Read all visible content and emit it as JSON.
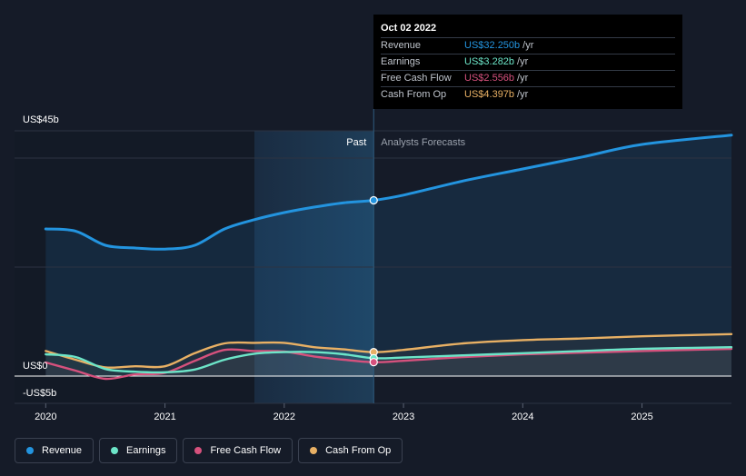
{
  "colors": {
    "background": "#151b28",
    "revenue": "#2394df",
    "earnings": "#6ce5c8",
    "free_cash_flow": "#d6517d",
    "cash_from_op": "#e8b064",
    "past_shade": "#1e3a52"
  },
  "tooltip": {
    "date": "Oct 02 2022",
    "rows": [
      {
        "label": "Revenue",
        "value": "US$32.250b",
        "unit": "/yr",
        "color": "#2394df"
      },
      {
        "label": "Earnings",
        "value": "US$3.282b",
        "unit": "/yr",
        "color": "#6ce5c8"
      },
      {
        "label": "Free Cash Flow",
        "value": "US$2.556b",
        "unit": "/yr",
        "color": "#d6517d"
      },
      {
        "label": "Cash From Op",
        "value": "US$4.397b",
        "unit": "/yr",
        "color": "#e8b064"
      }
    ]
  },
  "legend": {
    "items": [
      {
        "label": "Revenue",
        "color": "#2394df"
      },
      {
        "label": "Earnings",
        "color": "#6ce5c8"
      },
      {
        "label": "Free Cash Flow",
        "color": "#d6517d"
      },
      {
        "label": "Cash From Op",
        "color": "#e8b064"
      }
    ]
  },
  "chart_data": {
    "type": "line",
    "title": "",
    "xlabel": "",
    "ylabel": "",
    "ylim": [
      -5,
      45
    ],
    "xlim": [
      2019.99,
      2025.75
    ],
    "y_labels": {
      "top": "US$45b",
      "zero": "US$0",
      "bottom": "-US$5b"
    },
    "y_label_values": {
      "top": 45,
      "zero": 0,
      "bottom": -5
    },
    "x_ticks": [
      {
        "label": "2020",
        "value": 2020
      },
      {
        "label": "2021",
        "value": 2021
      },
      {
        "label": "2022",
        "value": 2022
      },
      {
        "label": "2023",
        "value": 2023
      },
      {
        "label": "2024",
        "value": 2024
      },
      {
        "label": "2025",
        "value": 2025
      }
    ],
    "gridlines": [
      45,
      40,
      20,
      0,
      -5
    ],
    "past_start": 2021.75,
    "divider": 2022.75,
    "past_label": "Past",
    "forecast_label": "Analysts Forecasts",
    "series": [
      {
        "name": "Revenue",
        "color": "#2394df",
        "x": [
          2020.0,
          2020.25,
          2020.5,
          2020.75,
          2021.0,
          2021.25,
          2021.5,
          2021.75,
          2022.0,
          2022.25,
          2022.5,
          2022.75,
          2023.0,
          2023.5,
          2024.0,
          2024.5,
          2025.0,
          2025.75
        ],
        "values": [
          27.0,
          26.6,
          24.0,
          23.5,
          23.3,
          24.0,
          27.0,
          28.7,
          30.0,
          31.0,
          31.8,
          32.25,
          33.2,
          35.8,
          38.0,
          40.2,
          42.5,
          44.2
        ]
      },
      {
        "name": "Earnings",
        "color": "#6ce5c8",
        "x": [
          2020.0,
          2020.25,
          2020.5,
          2020.75,
          2021.0,
          2021.25,
          2021.5,
          2021.75,
          2022.0,
          2022.25,
          2022.5,
          2022.75,
          2023.0,
          2023.5,
          2024.0,
          2024.5,
          2025.0,
          2025.75
        ],
        "values": [
          4.0,
          3.5,
          1.3,
          0.8,
          0.7,
          1.2,
          3.0,
          4.1,
          4.4,
          4.4,
          4.0,
          3.28,
          3.4,
          3.8,
          4.2,
          4.6,
          5.0,
          5.3
        ]
      },
      {
        "name": "Free Cash Flow",
        "color": "#d6517d",
        "x": [
          2020.0,
          2020.25,
          2020.5,
          2020.75,
          2021.0,
          2021.25,
          2021.5,
          2021.75,
          2022.0,
          2022.25,
          2022.5,
          2022.75,
          2023.0,
          2023.5,
          2024.0,
          2024.5,
          2025.0,
          2025.75
        ],
        "values": [
          2.5,
          1.0,
          -0.5,
          0.3,
          0.6,
          2.8,
          4.8,
          4.6,
          4.5,
          3.6,
          3.0,
          2.56,
          2.8,
          3.5,
          4.0,
          4.3,
          4.6,
          5.0
        ]
      },
      {
        "name": "Cash From Op",
        "color": "#e8b064",
        "x": [
          2020.0,
          2020.25,
          2020.5,
          2020.75,
          2021.0,
          2021.25,
          2021.5,
          2021.75,
          2022.0,
          2022.25,
          2022.5,
          2022.75,
          2023.0,
          2023.5,
          2024.0,
          2024.5,
          2025.0,
          2025.75
        ],
        "values": [
          4.6,
          3.0,
          1.6,
          1.8,
          1.8,
          4.2,
          6.0,
          6.1,
          6.1,
          5.3,
          4.9,
          4.4,
          4.8,
          6.0,
          6.6,
          6.9,
          7.3,
          7.7
        ]
      }
    ],
    "markers": [
      {
        "series": "Revenue",
        "x": 2022.75,
        "value": 32.25
      },
      {
        "series": "Cash From Op",
        "x": 2022.75,
        "value": 4.397
      },
      {
        "series": "Earnings",
        "x": 2022.75,
        "value": 3.282
      },
      {
        "series": "Free Cash Flow",
        "x": 2022.75,
        "value": 2.556
      }
    ]
  }
}
